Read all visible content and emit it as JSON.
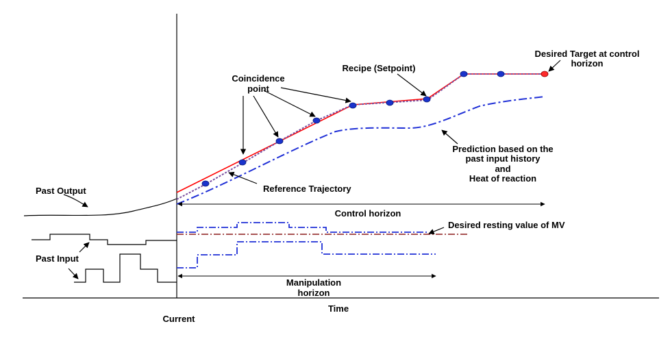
{
  "labels": {
    "desired_target_line1": "Desired Target at control",
    "desired_target_line2": "horizon",
    "recipe": "Recipe (Setpoint)",
    "coincidence_line1": "Coincidence",
    "coincidence_line2": "point",
    "prediction_line1": "Prediction based on the",
    "prediction_line2": "past input history",
    "prediction_line3": "and",
    "prediction_line4": "Heat of reaction",
    "reference_trajectory": "Reference Trajectory",
    "past_output": "Past Output",
    "control_horizon": "Control horizon",
    "desired_resting": "Desired resting value of MV",
    "past_input": "Past Input",
    "manipulation_line1": "Manipulation",
    "manipulation_line2": "horizon",
    "time": "Time",
    "current": "Current"
  },
  "colors": {
    "axis": "#000000",
    "setpoint": "#ff0000",
    "reference": "#7a4fa0",
    "prediction": "#1f2fd6",
    "coincidence_marker": "#1a33cc",
    "target_marker": "#ff2a2a",
    "resting_mv": "#8b1a1a",
    "mv_future": "#1f2fd6"
  }
}
